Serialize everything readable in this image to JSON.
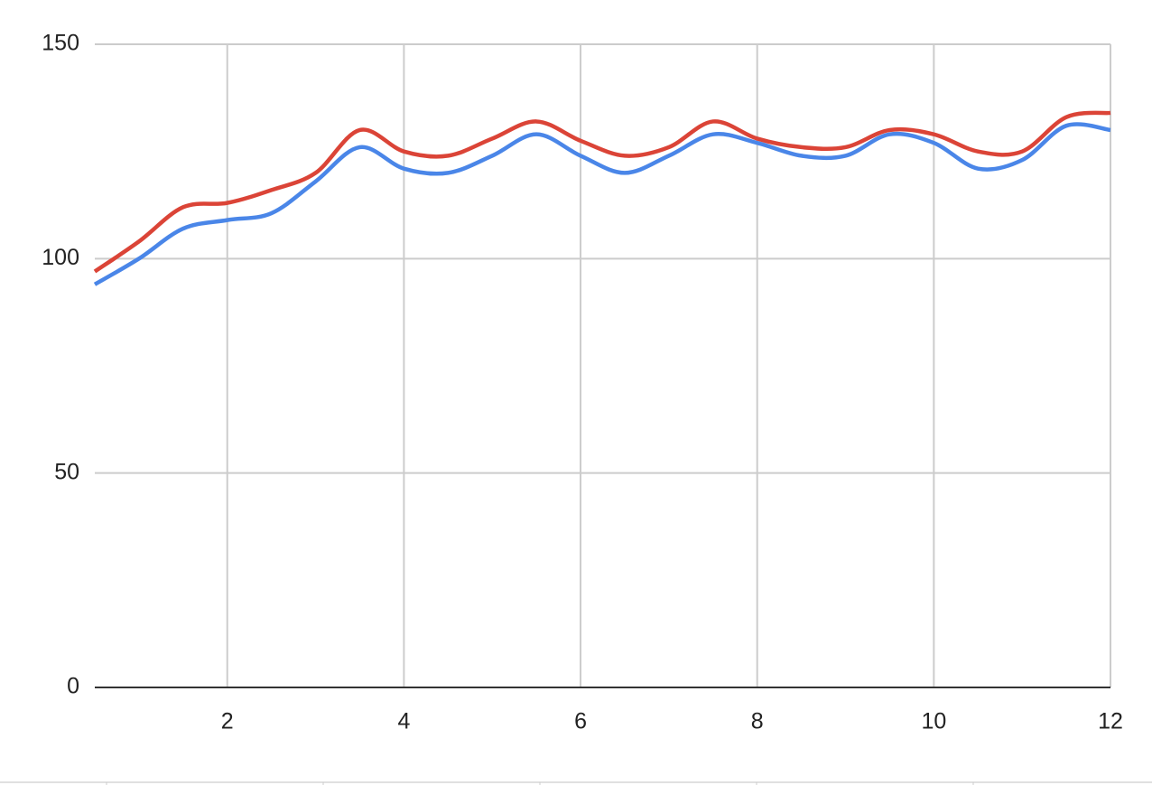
{
  "chart_data": {
    "type": "line",
    "x": [
      0.5,
      1,
      1.5,
      2,
      2.5,
      3,
      3.5,
      4,
      4.5,
      5,
      5.5,
      6,
      6.5,
      7,
      7.5,
      8,
      8.5,
      9,
      9.5,
      10,
      10.5,
      11,
      11.5,
      12
    ],
    "series": [
      {
        "color": "#4a86e8",
        "values": [
          94,
          100,
          107,
          109,
          110.6,
          118,
          126,
          121,
          120,
          124,
          129,
          124,
          120,
          124,
          129,
          127,
          124,
          124,
          129,
          127,
          121,
          123,
          131,
          130
        ]
      },
      {
        "color": "#db4437",
        "values": [
          97,
          104,
          112,
          113,
          116,
          120,
          130,
          125,
          124,
          128,
          132,
          127.5,
          124,
          126,
          132,
          128,
          126,
          126,
          130,
          129,
          125,
          125,
          133,
          134
        ]
      }
    ],
    "xlim": [
      0.5,
      12
    ],
    "xticks": [
      2,
      4,
      6,
      8,
      10,
      12
    ],
    "ylim": [
      0,
      150
    ],
    "yticks": [
      0,
      50,
      100,
      150
    ],
    "grid": true,
    "smooth": true
  }
}
